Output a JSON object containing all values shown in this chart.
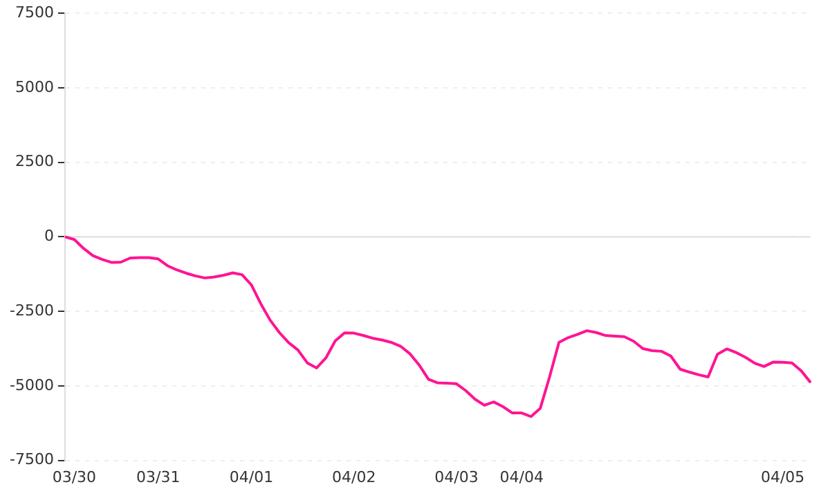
{
  "chart_data": {
    "type": "line",
    "categories": [
      null,
      "03/30",
      null,
      null,
      null,
      null,
      null,
      null,
      null,
      null,
      "03/31",
      null,
      null,
      null,
      null,
      null,
      null,
      null,
      null,
      null,
      "04/01",
      null,
      null,
      null,
      null,
      null,
      null,
      null,
      null,
      null,
      null,
      "04/02",
      null,
      null,
      null,
      null,
      null,
      null,
      null,
      null,
      null,
      null,
      "04/03",
      null,
      null,
      null,
      null,
      null,
      null,
      "04/04",
      null,
      null,
      null,
      null,
      null,
      null,
      null,
      null,
      null,
      null,
      null,
      null,
      null,
      null,
      null,
      null,
      null,
      null,
      null,
      null,
      null,
      null,
      null,
      null,
      null,
      null,
      null,
      "04/05",
      null,
      null,
      null
    ],
    "series": [
      {
        "color": "#ff1493",
        "values": [
          0,
          -90,
          -390,
          -630,
          -760,
          -860,
          -850,
          -710,
          -700,
          -700,
          -740,
          -970,
          -1110,
          -1220,
          -1310,
          -1380,
          -1350,
          -1290,
          -1210,
          -1270,
          -1610,
          -2240,
          -2790,
          -3210,
          -3550,
          -3800,
          -4230,
          -4400,
          -4060,
          -3490,
          -3220,
          -3230,
          -3310,
          -3400,
          -3460,
          -3540,
          -3670,
          -3920,
          -4300,
          -4780,
          -4900,
          -4910,
          -4930,
          -5160,
          -5450,
          -5650,
          -5540,
          -5700,
          -5910,
          -5910,
          -6030,
          -5750,
          -4690,
          -3540,
          -3380,
          -3270,
          -3150,
          -3210,
          -3310,
          -3330,
          -3350,
          -3500,
          -3750,
          -3820,
          -3840,
          -4000,
          -4440,
          -4540,
          -4630,
          -4700,
          -3940,
          -3760,
          -3880,
          -4040,
          -4240,
          -4350,
          -4200,
          -4210,
          -4230,
          -4500,
          -4890
        ]
      }
    ],
    "ylim": [
      -7500,
      7500
    ],
    "yticks": [
      -7500,
      -5000,
      -2500,
      0,
      2500,
      5000,
      7500
    ],
    "ref_lines": [
      {
        "axis": "y",
        "value": 0,
        "color": "#dddddd"
      }
    ],
    "grid": "y",
    "legend": false,
    "marker": "none",
    "line_style": "solid"
  }
}
